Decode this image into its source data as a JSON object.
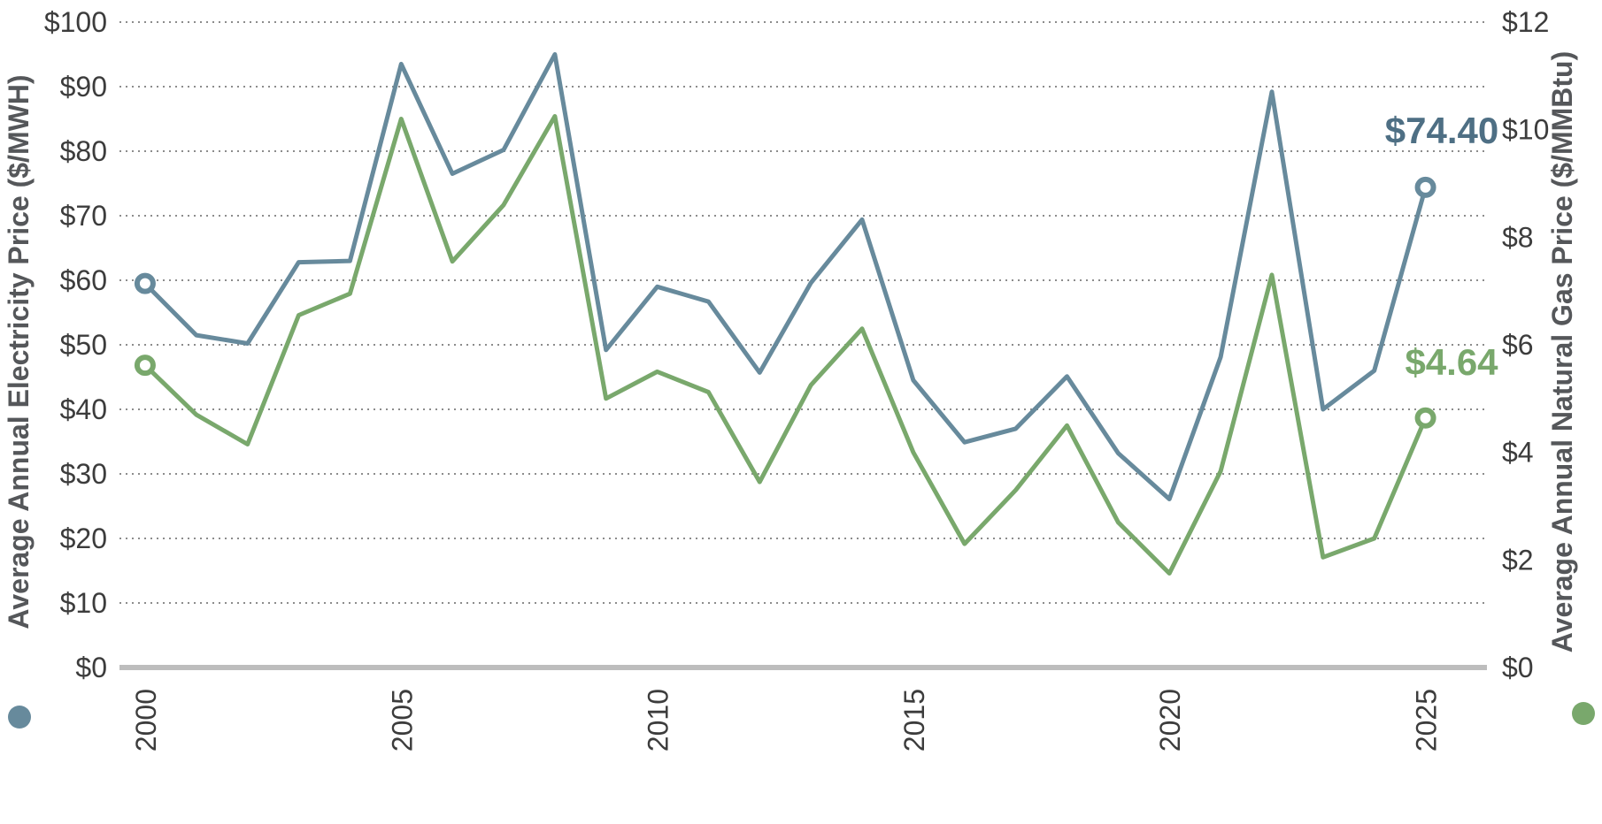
{
  "chart_data": {
    "type": "line",
    "x": [
      2000,
      2001,
      2002,
      2003,
      2004,
      2005,
      2006,
      2007,
      2008,
      2009,
      2010,
      2011,
      2012,
      2013,
      2014,
      2015,
      2016,
      2017,
      2018,
      2019,
      2020,
      2021,
      2022,
      2023,
      2024,
      2025
    ],
    "xlim": [
      1999.5,
      2026.2
    ],
    "x_ticks": [
      "2000",
      "2005",
      "2010",
      "2015",
      "2020",
      "2025"
    ],
    "series": [
      {
        "key": "electricity",
        "axis": "left",
        "color": "#678a9c",
        "end_label": "$74.40",
        "values": [
          59.5,
          51.5,
          50.2,
          62.8,
          63.0,
          93.5,
          76.5,
          80.2,
          95.0,
          49.2,
          59.0,
          56.7,
          45.7,
          59.6,
          69.4,
          44.5,
          34.9,
          37.0,
          45.1,
          33.2,
          26.1,
          48.1,
          89.2,
          40.0,
          46.0,
          74.4
        ]
      },
      {
        "key": "natural_gas",
        "axis": "right",
        "color": "#79a86c",
        "end_label": "$4.64",
        "values": [
          5.62,
          4.7,
          4.15,
          6.55,
          6.95,
          10.2,
          7.55,
          8.6,
          10.25,
          5.0,
          5.5,
          5.12,
          3.45,
          5.25,
          6.3,
          4.0,
          2.3,
          3.3,
          4.5,
          2.7,
          1.75,
          3.65,
          7.3,
          2.05,
          2.4,
          4.64
        ]
      }
    ],
    "y_left": {
      "label": "Average Annual Electricity Price ($/MWH)",
      "ylim": [
        0,
        100
      ],
      "ticks": [
        "$0",
        "$10",
        "$20",
        "$30",
        "$40",
        "$50",
        "$60",
        "$70",
        "$80",
        "$90",
        "$100"
      ]
    },
    "y_right": {
      "label": "Average Annual Natural Gas Price ($/MMBtu)",
      "ylim": [
        0,
        12
      ],
      "ticks": [
        "$0",
        "$2",
        "$4",
        "$6",
        "$8",
        "$10",
        "$12"
      ]
    },
    "grid": true,
    "legend": "legend dots at bottom-left and bottom-right beside the axis titles"
  }
}
